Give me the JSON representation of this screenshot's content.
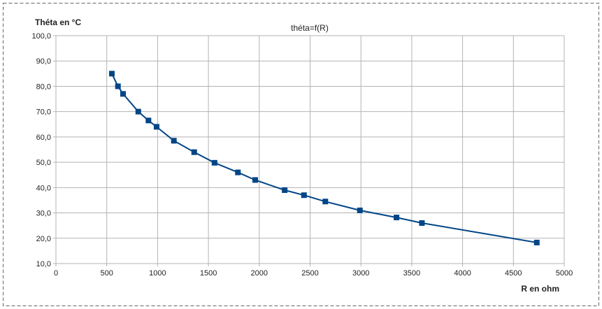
{
  "chart_data": {
    "type": "scatter",
    "title": "théta=f(R)",
    "xlabel": "R en ohm",
    "ylabel": "Théta en °C",
    "xlim": [
      0,
      5000
    ],
    "ylim": [
      10,
      100
    ],
    "xticks": [
      "0",
      "500",
      "1000",
      "1500",
      "2000",
      "2500",
      "3000",
      "3500",
      "4000",
      "4500",
      "5000"
    ],
    "yticks": [
      "10,0",
      "20,0",
      "30,0",
      "40,0",
      "50,0",
      "60,0",
      "70,0",
      "80,0",
      "90,0",
      "100,0"
    ],
    "grid": true,
    "legend": "none",
    "marker": "square",
    "line": true,
    "color": "#004586",
    "series": [
      {
        "x": [
          550,
          610,
          660,
          810,
          910,
          990,
          1160,
          1360,
          1560,
          1790,
          1960,
          2250,
          2440,
          2650,
          2990,
          3350,
          3600,
          4730
        ],
        "y": [
          85,
          80,
          77,
          70,
          66.5,
          64,
          58.5,
          54,
          49.8,
          46,
          43,
          39,
          37,
          34.5,
          31,
          28.2,
          26,
          18.3
        ]
      }
    ]
  }
}
